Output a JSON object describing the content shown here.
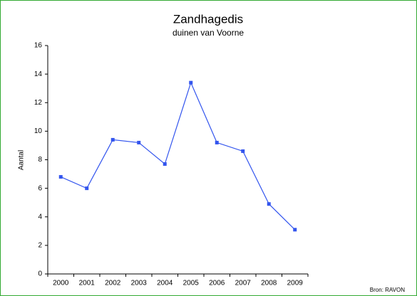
{
  "chart_data": {
    "type": "line",
    "title": "Zandhagedis",
    "subtitle": "duinen van Voorne",
    "ylabel": "Aantal",
    "source": "Bron: RAVON",
    "categories": [
      "2000",
      "2001",
      "2002",
      "2003",
      "2004",
      "2005",
      "2006",
      "2007",
      "2008",
      "2009"
    ],
    "values": [
      6.8,
      6.0,
      9.4,
      9.2,
      7.7,
      13.4,
      9.2,
      8.6,
      4.9,
      3.1
    ],
    "color": "#3355ee",
    "ylim": [
      0,
      16
    ],
    "yticks": [
      0,
      2,
      4,
      6,
      8,
      10,
      12,
      14,
      16
    ],
    "grid": false
  }
}
